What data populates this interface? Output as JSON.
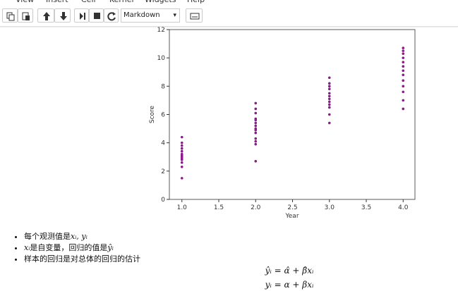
{
  "menu": [
    "View",
    "Insert",
    "Cell",
    "Kernel",
    "Widgets",
    "Help"
  ],
  "toolbar": {
    "cell_type": "Markdown"
  },
  "chart_data": {
    "type": "scatter",
    "xlabel": "Year",
    "ylabel": "Score",
    "color": "#8b1a8b",
    "x": [
      1,
      1,
      1,
      1,
      1,
      1,
      1,
      1,
      1,
      1,
      1,
      1,
      1,
      2,
      2,
      2,
      2,
      2,
      2,
      2,
      2,
      2,
      2,
      2,
      2,
      2,
      2,
      3,
      3,
      3,
      3,
      3,
      3,
      3,
      3,
      3,
      3,
      3,
      3,
      4,
      4,
      4,
      4,
      4,
      4,
      4,
      4,
      4,
      4,
      4,
      4,
      4
    ],
    "y": [
      1.5,
      2.3,
      2.6,
      2.8,
      2.9,
      3.0,
      3.1,
      3.2,
      3.4,
      3.6,
      3.8,
      4.0,
      4.4,
      2.7,
      3.9,
      4.1,
      4.3,
      4.7,
      4.9,
      5.0,
      5.2,
      5.4,
      5.6,
      5.7,
      6.1,
      6.4,
      6.8,
      5.4,
      6.0,
      6.5,
      6.7,
      6.9,
      7.1,
      7.3,
      7.5,
      7.8,
      8.0,
      8.2,
      8.6,
      6.4,
      7.0,
      7.6,
      8.0,
      8.4,
      8.8,
      9.1,
      9.4,
      9.7,
      10.0,
      10.3,
      10.5,
      10.7
    ],
    "xlim": [
      0.83,
      4.16
    ],
    "ylim": [
      0,
      12
    ],
    "xticks": [
      {
        "value": 1,
        "label": "1.0"
      },
      {
        "value": 1.5,
        "label": "1.5"
      },
      {
        "value": 2,
        "label": "2.0"
      },
      {
        "value": 2.5,
        "label": "2.5"
      },
      {
        "value": 3,
        "label": "3.0"
      },
      {
        "value": 3.5,
        "label": "3.5"
      },
      {
        "value": 4,
        "label": "4.0"
      }
    ],
    "yticks": [
      0,
      2,
      4,
      6,
      8,
      10,
      12
    ]
  },
  "bullets": [
    [
      {
        "t": "每个观测值是"
      },
      {
        "m": "xᵢ, yᵢ"
      }
    ],
    [
      {
        "m": "xᵢ"
      },
      {
        "t": "是自变量，回归的值是"
      },
      {
        "m": "ŷᵢ"
      }
    ],
    [
      {
        "t": "样本的回归是对总体的回归的估计"
      }
    ]
  ],
  "formulas": [
    "ŷᵢ = α̂ + β̂xᵢ",
    "yᵢ = α + βxᵢ"
  ]
}
